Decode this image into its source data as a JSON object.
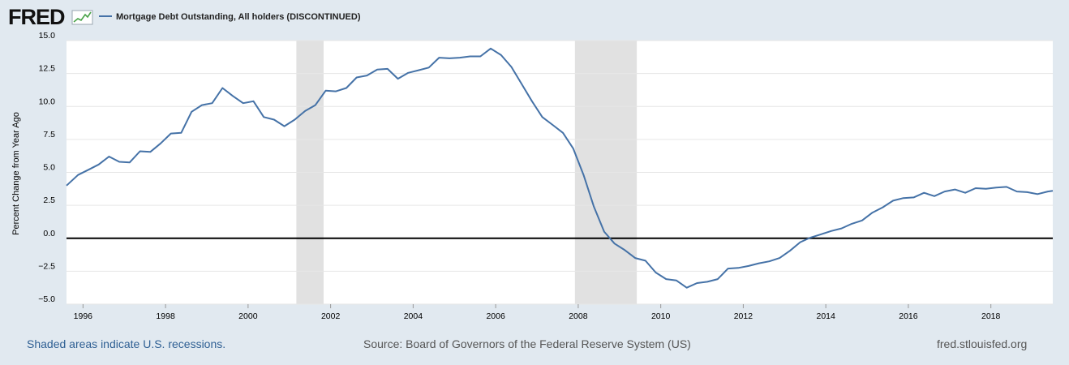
{
  "header": {
    "logo_text": "FRED",
    "legend_label": "Mortgage Debt Outstanding, All holders (DISCONTINUED)"
  },
  "colors": {
    "background": "#e1e9f0",
    "plot_bg": "#ffffff",
    "grid": "#e6e6e6",
    "series": "#4572a7",
    "recession": "#e1e1e1",
    "zero_line": "#000000"
  },
  "footer": {
    "recession_note": "Shaded areas indicate U.S. recessions.",
    "source": "Source: Board of Governors of the Federal Reserve System (US)",
    "site": "fred.stlouisfed.org"
  },
  "chart_data": {
    "type": "line",
    "title": "Mortgage Debt Outstanding, All holders (DISCONTINUED)",
    "xlabel": "",
    "ylabel": "Percent Change from Year Ago",
    "xlim": [
      1995.6,
      2019.5
    ],
    "ylim": [
      -5.0,
      15.0
    ],
    "yticks": [
      15.0,
      12.5,
      10.0,
      7.5,
      5.0,
      2.5,
      0.0,
      -2.5,
      -5.0
    ],
    "ytick_labels": [
      "15.0",
      "12.5",
      "10.0",
      "7.5",
      "5.0",
      "2.5",
      "0.0",
      "−2.5",
      "−5.0"
    ],
    "xticks": [
      1996,
      1998,
      2000,
      2002,
      2004,
      2006,
      2008,
      2010,
      2012,
      2014,
      2016,
      2018
    ],
    "xtick_labels": [
      "1996",
      "1998",
      "2000",
      "2002",
      "2004",
      "2006",
      "2008",
      "2010",
      "2012",
      "2014",
      "2016",
      "2018"
    ],
    "recessions": [
      [
        2001.17,
        2001.83
      ],
      [
        2007.92,
        2009.42
      ]
    ],
    "zero_line": 0,
    "series": [
      {
        "name": "Mortgage Debt Outstanding, All holders (DISCONTINUED)",
        "x": [
          1995.6,
          1995.88,
          1996.13,
          1996.38,
          1996.63,
          1996.88,
          1997.13,
          1997.38,
          1997.63,
          1997.88,
          1998.13,
          1998.38,
          1998.63,
          1998.88,
          1999.13,
          1999.38,
          1999.63,
          1999.88,
          2000.13,
          2000.38,
          2000.63,
          2000.88,
          2001.13,
          2001.38,
          2001.63,
          2001.88,
          2002.13,
          2002.38,
          2002.63,
          2002.88,
          2003.13,
          2003.38,
          2003.63,
          2003.88,
          2004.13,
          2004.38,
          2004.63,
          2004.88,
          2005.13,
          2005.38,
          2005.63,
          2005.88,
          2006.13,
          2006.38,
          2006.63,
          2006.88,
          2007.13,
          2007.38,
          2007.63,
          2007.88,
          2008.13,
          2008.38,
          2008.63,
          2008.88,
          2009.13,
          2009.38,
          2009.63,
          2009.88,
          2010.13,
          2010.38,
          2010.63,
          2010.88,
          2011.13,
          2011.38,
          2011.63,
          2011.88,
          2012.13,
          2012.38,
          2012.63,
          2012.88,
          2013.13,
          2013.38,
          2013.63,
          2013.88,
          2014.13,
          2014.38,
          2014.63,
          2014.88,
          2015.13,
          2015.38,
          2015.63,
          2015.88,
          2016.13,
          2016.38,
          2016.63,
          2016.88,
          2017.13,
          2017.38,
          2017.63,
          2017.88,
          2018.13,
          2018.38,
          2018.63,
          2018.88,
          2019.13,
          2019.38,
          2019.5
        ],
        "values": [
          4.0,
          4.8,
          5.2,
          5.6,
          6.2,
          5.8,
          5.75,
          6.6,
          6.55,
          7.2,
          7.95,
          8.0,
          9.6,
          10.1,
          10.25,
          11.4,
          10.8,
          10.25,
          10.4,
          9.2,
          9.0,
          8.5,
          9.0,
          9.65,
          10.1,
          11.2,
          11.15,
          11.4,
          12.2,
          12.35,
          12.8,
          12.85,
          12.1,
          12.55,
          12.75,
          12.95,
          13.7,
          13.65,
          13.7,
          13.8,
          13.8,
          14.4,
          13.9,
          13.0,
          11.7,
          10.4,
          9.2,
          8.6,
          8.0,
          6.8,
          4.8,
          2.4,
          0.5,
          -0.4,
          -0.9,
          -1.5,
          -1.7,
          -2.6,
          -3.1,
          -3.2,
          -3.75,
          -3.4,
          -3.3,
          -3.1,
          -2.3,
          -2.25,
          -2.1,
          -1.9,
          -1.75,
          -1.5,
          -0.95,
          -0.3,
          0.05,
          0.3,
          0.55,
          0.75,
          1.1,
          1.35,
          1.95,
          2.35,
          2.85,
          3.05,
          3.1,
          3.45,
          3.2,
          3.55,
          3.7,
          3.45,
          3.8,
          3.75,
          3.85,
          3.9,
          3.55,
          3.5,
          3.35,
          3.55,
          3.6
        ]
      }
    ]
  }
}
